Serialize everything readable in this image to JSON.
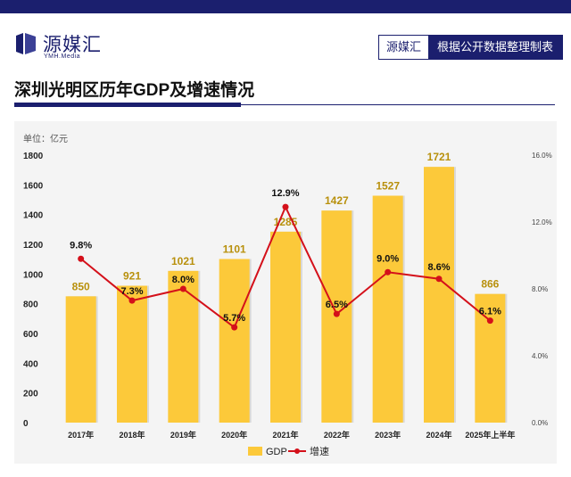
{
  "brand": {
    "name_cn": "源媒汇",
    "name_en": "YMH.Media"
  },
  "header_tag": {
    "left": "源媒汇",
    "right": "根据公开数据整理制表"
  },
  "colors": {
    "navy": "#1b1f6e",
    "bar": "#fcc93a",
    "bar_label": "#b8900c",
    "line": "#d4101a"
  },
  "chart_data": {
    "type": "bar",
    "title": "深圳光明区历年GDP及增速情况",
    "unit_label": "单位：亿元",
    "categories": [
      "2017年",
      "2018年",
      "2019年",
      "2020年",
      "2021年",
      "2022年",
      "2023年",
      "2024年",
      "2025年上半年"
    ],
    "series": [
      {
        "name": "GDP",
        "type": "bar",
        "axis": "left",
        "values": [
          850,
          921,
          1021,
          1101,
          1285,
          1427,
          1527,
          1721,
          866
        ]
      },
      {
        "name": "增速",
        "type": "line",
        "axis": "right",
        "values": [
          9.8,
          7.3,
          8.0,
          5.7,
          12.9,
          6.5,
          9.0,
          8.6,
          6.1
        ],
        "labels": [
          "9.8%",
          "7.3%",
          "8.0%",
          "5.7%",
          "12.9%",
          "6.5%",
          "9.0%",
          "8.6%",
          "6.1%"
        ]
      }
    ],
    "y_left": {
      "min": 0,
      "max": 1800,
      "ticks": [
        0,
        200,
        400,
        600,
        800,
        1000,
        1200,
        1400,
        1600,
        1800
      ]
    },
    "y_right": {
      "min": 0,
      "max": 16,
      "ticks": [
        0,
        4,
        8,
        12,
        16
      ],
      "tick_labels": [
        "0.0%",
        "4.0%",
        "8.0%",
        "12.0%",
        "16.0%"
      ]
    },
    "legend": {
      "position": "bottom",
      "items": [
        "GDP",
        "增速"
      ]
    },
    "grid": false
  }
}
